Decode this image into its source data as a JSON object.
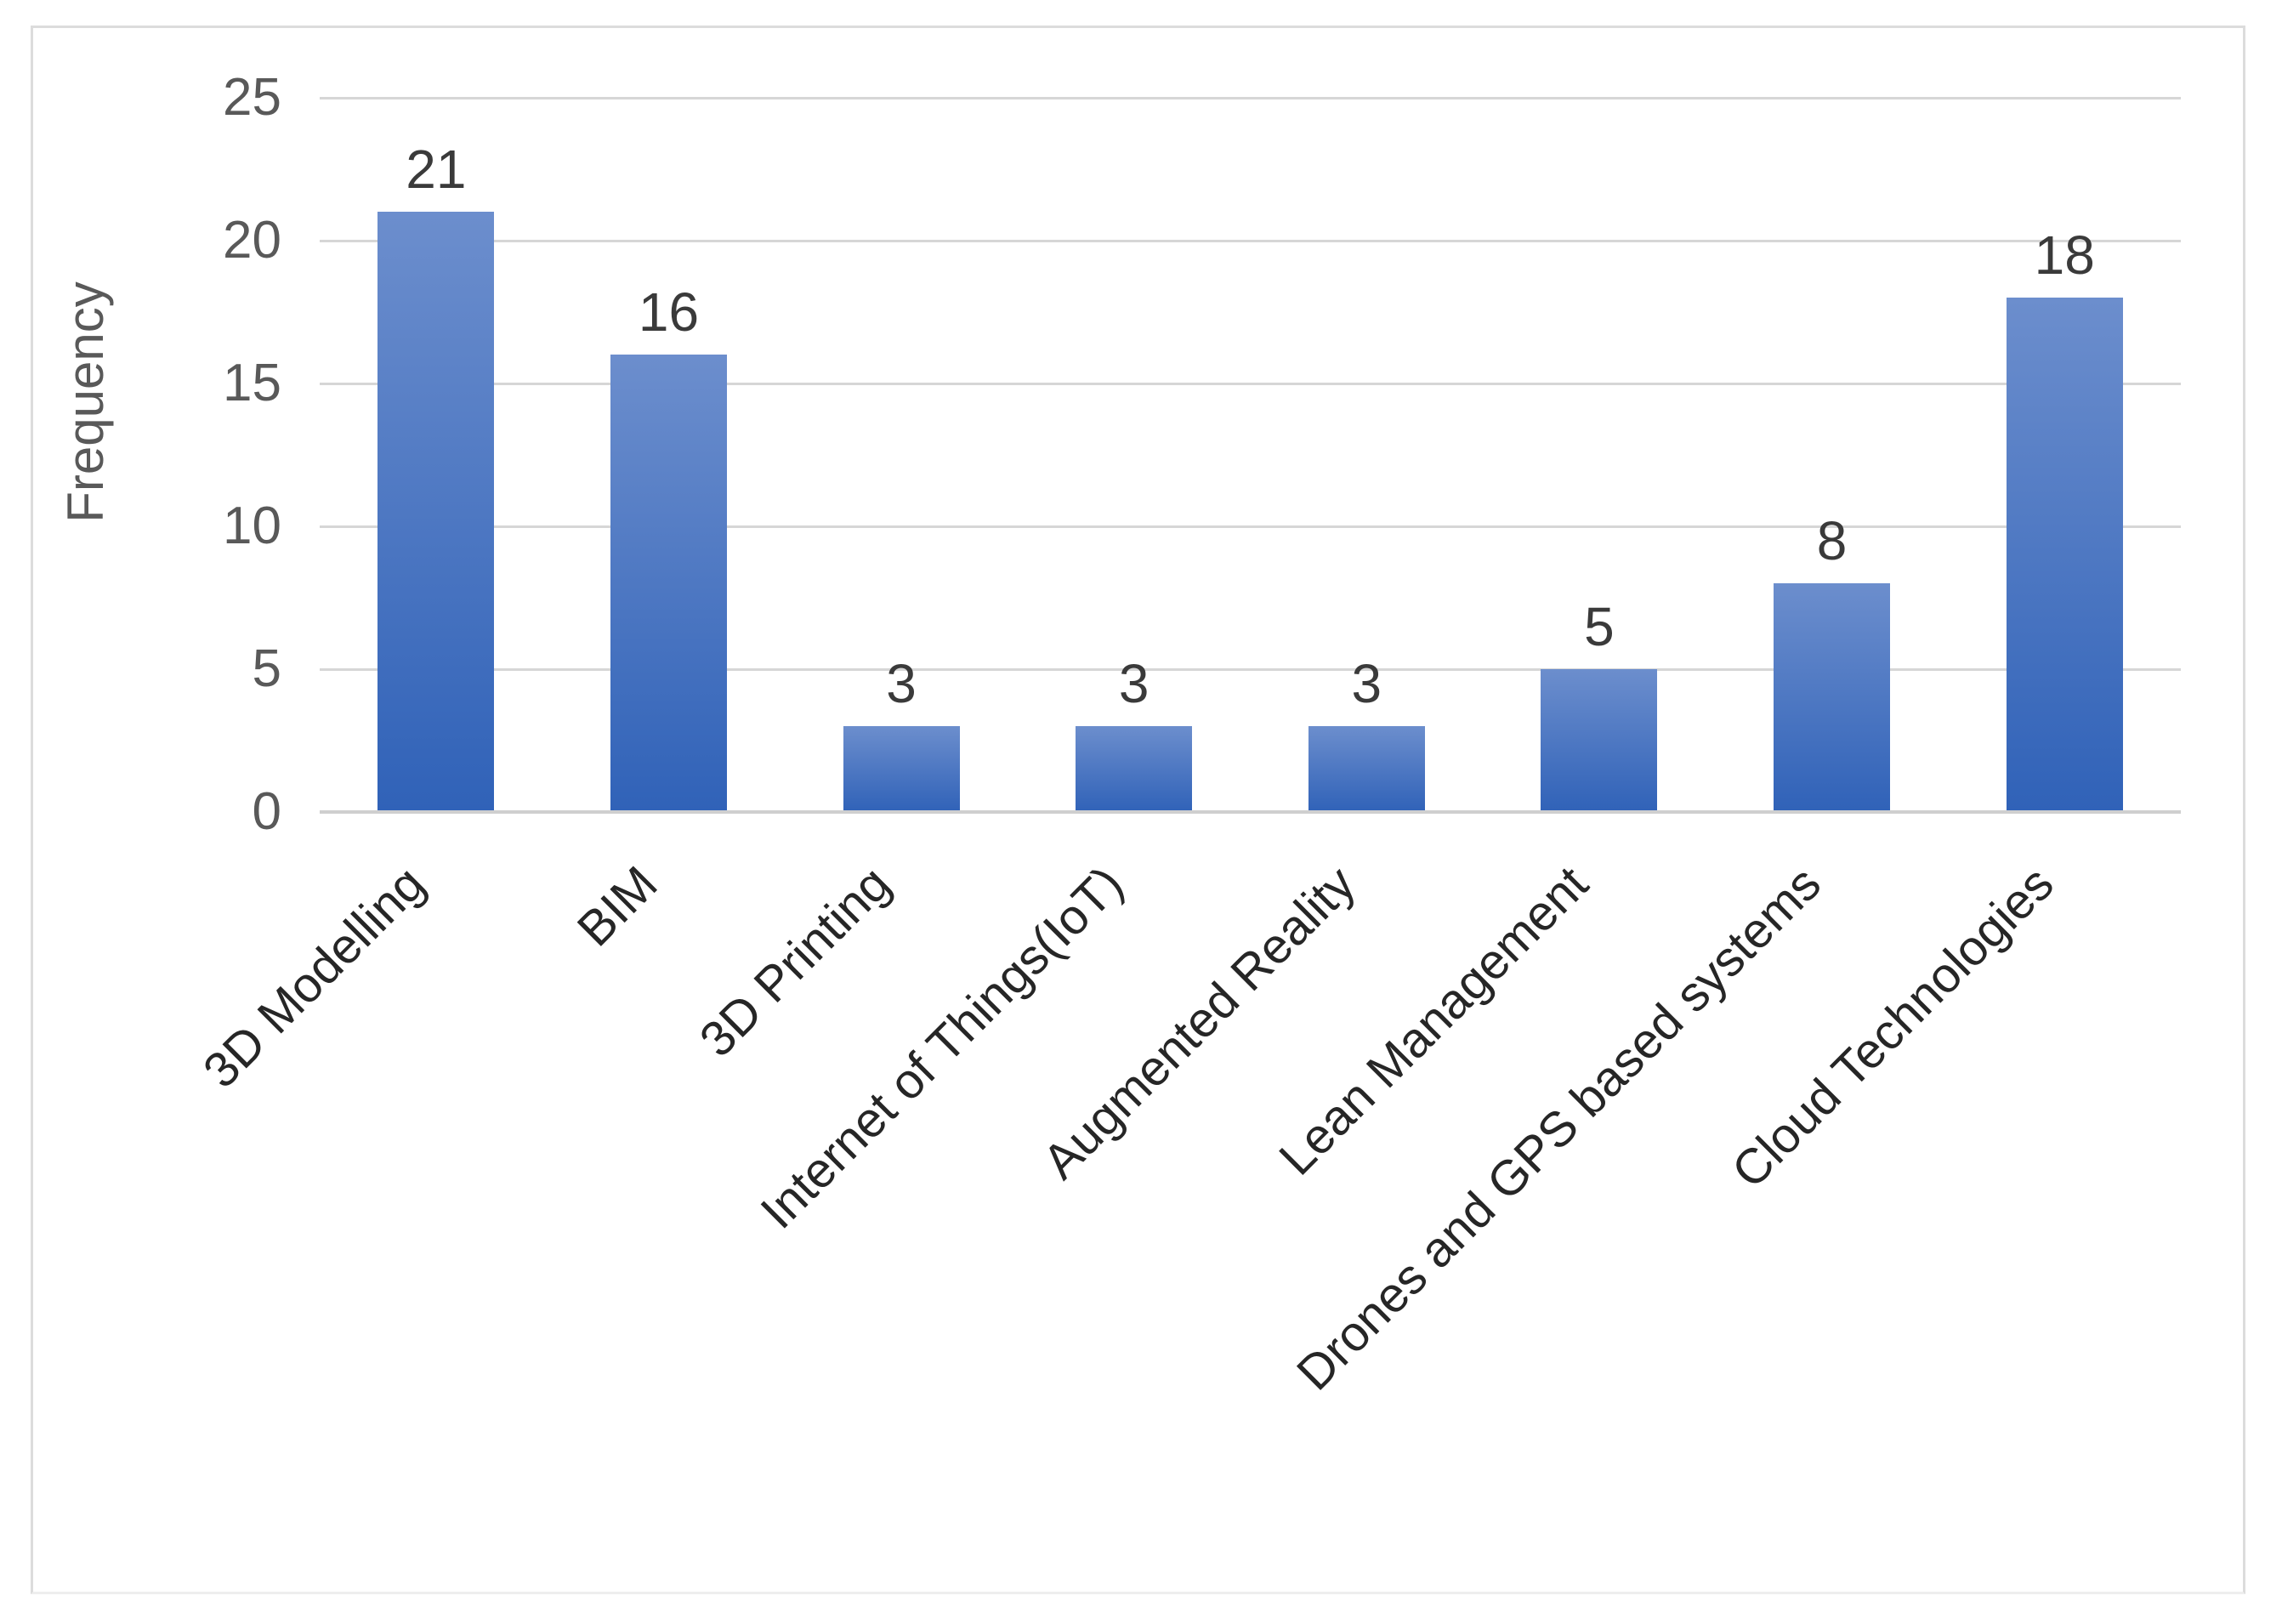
{
  "chart_data": {
    "type": "bar",
    "title": "",
    "categories": [
      "3D Modelling",
      "BIM",
      "3D Printing",
      "Internet of Things(IoT)",
      "Augmented Reality",
      "Lean Management",
      "Drones and GPS based systems",
      "Cloud Technologies"
    ],
    "values": [
      21,
      16,
      3,
      3,
      3,
      5,
      8,
      18
    ],
    "xlabel": "",
    "ylabel": "Frequency",
    "y_ticks": [
      0,
      5,
      10,
      15,
      20,
      25
    ],
    "ylim": [
      0,
      25
    ],
    "grid": "horizontal-on",
    "legend": "none",
    "data_labels_shown": true,
    "category_label_rotation_deg": -45
  },
  "colors": {
    "bar_gradient_top": "#6c8ecd",
    "bar_gradient_bottom": "#3062b8",
    "gridline": "#d6d6d6",
    "baseline": "#cfcfcf",
    "tick_text": "#595959",
    "category_text": "#262626",
    "value_text": "#3a3a3a",
    "frame_border": "#dcdcdc",
    "background": "#ffffff"
  }
}
